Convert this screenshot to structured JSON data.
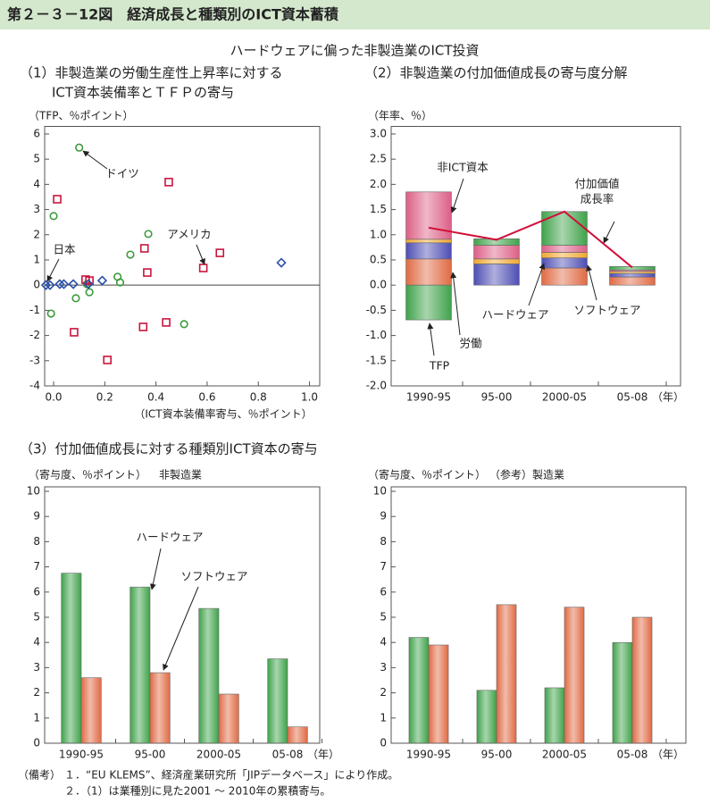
{
  "title": "第２－３－12図　経済成長と種類別のICT資本蓄積",
  "subtitle": "ハードウェアに偏った非製造業のICT投資",
  "chart_data": [
    {
      "type": "scatter",
      "title": [
        "（1）非製造業の労働生産性上昇率に対する",
        "ICT資本装備率とＴＦＰの寄与"
      ],
      "ylabel": "（TFP、％ポイント）",
      "xlabel": "（ICT資本装備率寄与、％ポイント）",
      "xlim": [
        -0.035,
        1.04
      ],
      "ylim": [
        -4,
        6.3
      ],
      "xticks": [
        {
          "value": 0,
          "label": "0.0"
        },
        0.2,
        0.4,
        0.6,
        0.8,
        {
          "value": 1,
          "label": "1.0"
        }
      ],
      "yticks": [
        -4,
        -3,
        -2,
        -1,
        0,
        1,
        2,
        3,
        4,
        5,
        6
      ],
      "series": [
        {
          "name": "ドイツ",
          "color": "#3e9a3e",
          "marker": "circle",
          "x": [
            0.1,
            0.0,
            -0.01,
            0.087,
            0.14,
            0.13,
            0.25,
            0.26,
            0.3,
            0.37,
            0.51
          ],
          "y": [
            5.46,
            2.74,
            -1.13,
            -0.52,
            -0.28,
            0.04,
            0.33,
            0.11,
            1.21,
            2.03,
            -1.55
          ]
        },
        {
          "name": "アメリカ",
          "color": "#c8163e",
          "marker": "square",
          "x": [
            0.014,
            0.45,
            0.08,
            0.21,
            0.125,
            0.14,
            0.355,
            0.366,
            0.35,
            0.44,
            0.585,
            0.65
          ],
          "y": [
            3.41,
            4.09,
            -1.87,
            -2.97,
            0.22,
            0.18,
            1.46,
            0.5,
            -1.66,
            -1.48,
            0.68,
            1.28
          ]
        },
        {
          "name": "日本",
          "color": "#2a4fa8",
          "marker": "diamond",
          "x": [
            -0.03,
            -0.014,
            0.024,
            0.04,
            0.077,
            0.136,
            0.19,
            0.89
          ],
          "y": [
            0,
            0,
            0.04,
            0.04,
            0.04,
            0.04,
            0.18,
            0.89
          ]
        }
      ]
    },
    {
      "type": "bar",
      "stacked": true,
      "title": "（2）非製造業の付加価値成長の寄与度分解",
      "ylabel": "（年率、％）",
      "categories": [
        "1990-95",
        "95-00",
        "2000-05",
        "05-08"
      ],
      "xunit": "（年）",
      "ylim": [
        -2,
        3.15
      ],
      "yticks": [
        {
          "value": -2,
          "label": "-2.0"
        },
        -1.5,
        {
          "value": -1,
          "label": "-1.0"
        },
        -0.5,
        {
          "value": 0,
          "label": "0.0"
        },
        0.5,
        {
          "value": 1,
          "label": "1.0"
        },
        1.5,
        {
          "value": 2,
          "label": "2.0"
        },
        2.5,
        {
          "value": 3,
          "label": "3.0"
        }
      ],
      "series": [
        {
          "name": "労働",
          "color": "#e06a44",
          "values": [
            0.52,
            0.0,
            0.34,
            0.16
          ]
        },
        {
          "name": "ハードウェア",
          "color": "#4d4db4",
          "values": [
            0.32,
            0.42,
            0.2,
            0.07
          ]
        },
        {
          "name": "ソフトウェア",
          "color": "#f0a830",
          "values": [
            0.07,
            0.1,
            0.11,
            0.04
          ]
        },
        {
          "name": "非ICT資本",
          "color": "#dc5f86",
          "values": [
            0.94,
            0.27,
            0.14,
            0.03
          ]
        },
        {
          "name": "TFP",
          "color": "#3fa24a",
          "values": [
            -0.69,
            0.13,
            0.67,
            0.07
          ]
        },
        {
          "name": "付加価値成長率",
          "type": "line",
          "color": "#d0103a",
          "values": [
            1.14,
            0.9,
            1.46,
            0.35
          ]
        }
      ]
    },
    {
      "type": "bar",
      "stacked": false,
      "title": "（3）付加価値成長に対する種類別ICT資本の寄与",
      "ylabel": "（寄与度、％ポイント）",
      "subtitle": "非製造業",
      "categories": [
        "1990-95",
        "95-00",
        "2000-05",
        "05-08"
      ],
      "xunit": "（年）",
      "ylim": [
        0,
        10
      ],
      "yticks": [
        0,
        1,
        2,
        3,
        4,
        5,
        6,
        7,
        8,
        9,
        10
      ],
      "series": [
        {
          "name": "ハードウェア",
          "color": "#3fa24a",
          "values": [
            6.75,
            6.2,
            5.35,
            3.35
          ]
        },
        {
          "name": "ソフトウェア",
          "color": "#e06a44",
          "values": [
            2.6,
            2.8,
            1.95,
            0.65
          ]
        }
      ]
    },
    {
      "type": "bar",
      "stacked": false,
      "ylabel": "（寄与度、％ポイント）",
      "subtitle": "（参考）製造業",
      "categories": [
        "1990-95",
        "95-00",
        "2000-05",
        "05-08"
      ],
      "xunit": "（年）",
      "ylim": [
        0,
        10
      ],
      "yticks": [
        0,
        1,
        2,
        3,
        4,
        5,
        6,
        7,
        8,
        9,
        10
      ],
      "series": [
        {
          "color": "#3fa24a",
          "values": [
            4.2,
            2.1,
            2.2,
            4.0
          ]
        },
        {
          "color": "#e06a44",
          "values": [
            3.9,
            5.5,
            5.4,
            5.0
          ]
        }
      ]
    }
  ],
  "notes": {
    "label": "（備考）",
    "items": [
      "１．“EU KLEMS”、経済産業研究所「JIPデータベース」により作成。",
      "２．（1）は業種別に見た2001 ～ 2010年の累積寄与。"
    ]
  }
}
